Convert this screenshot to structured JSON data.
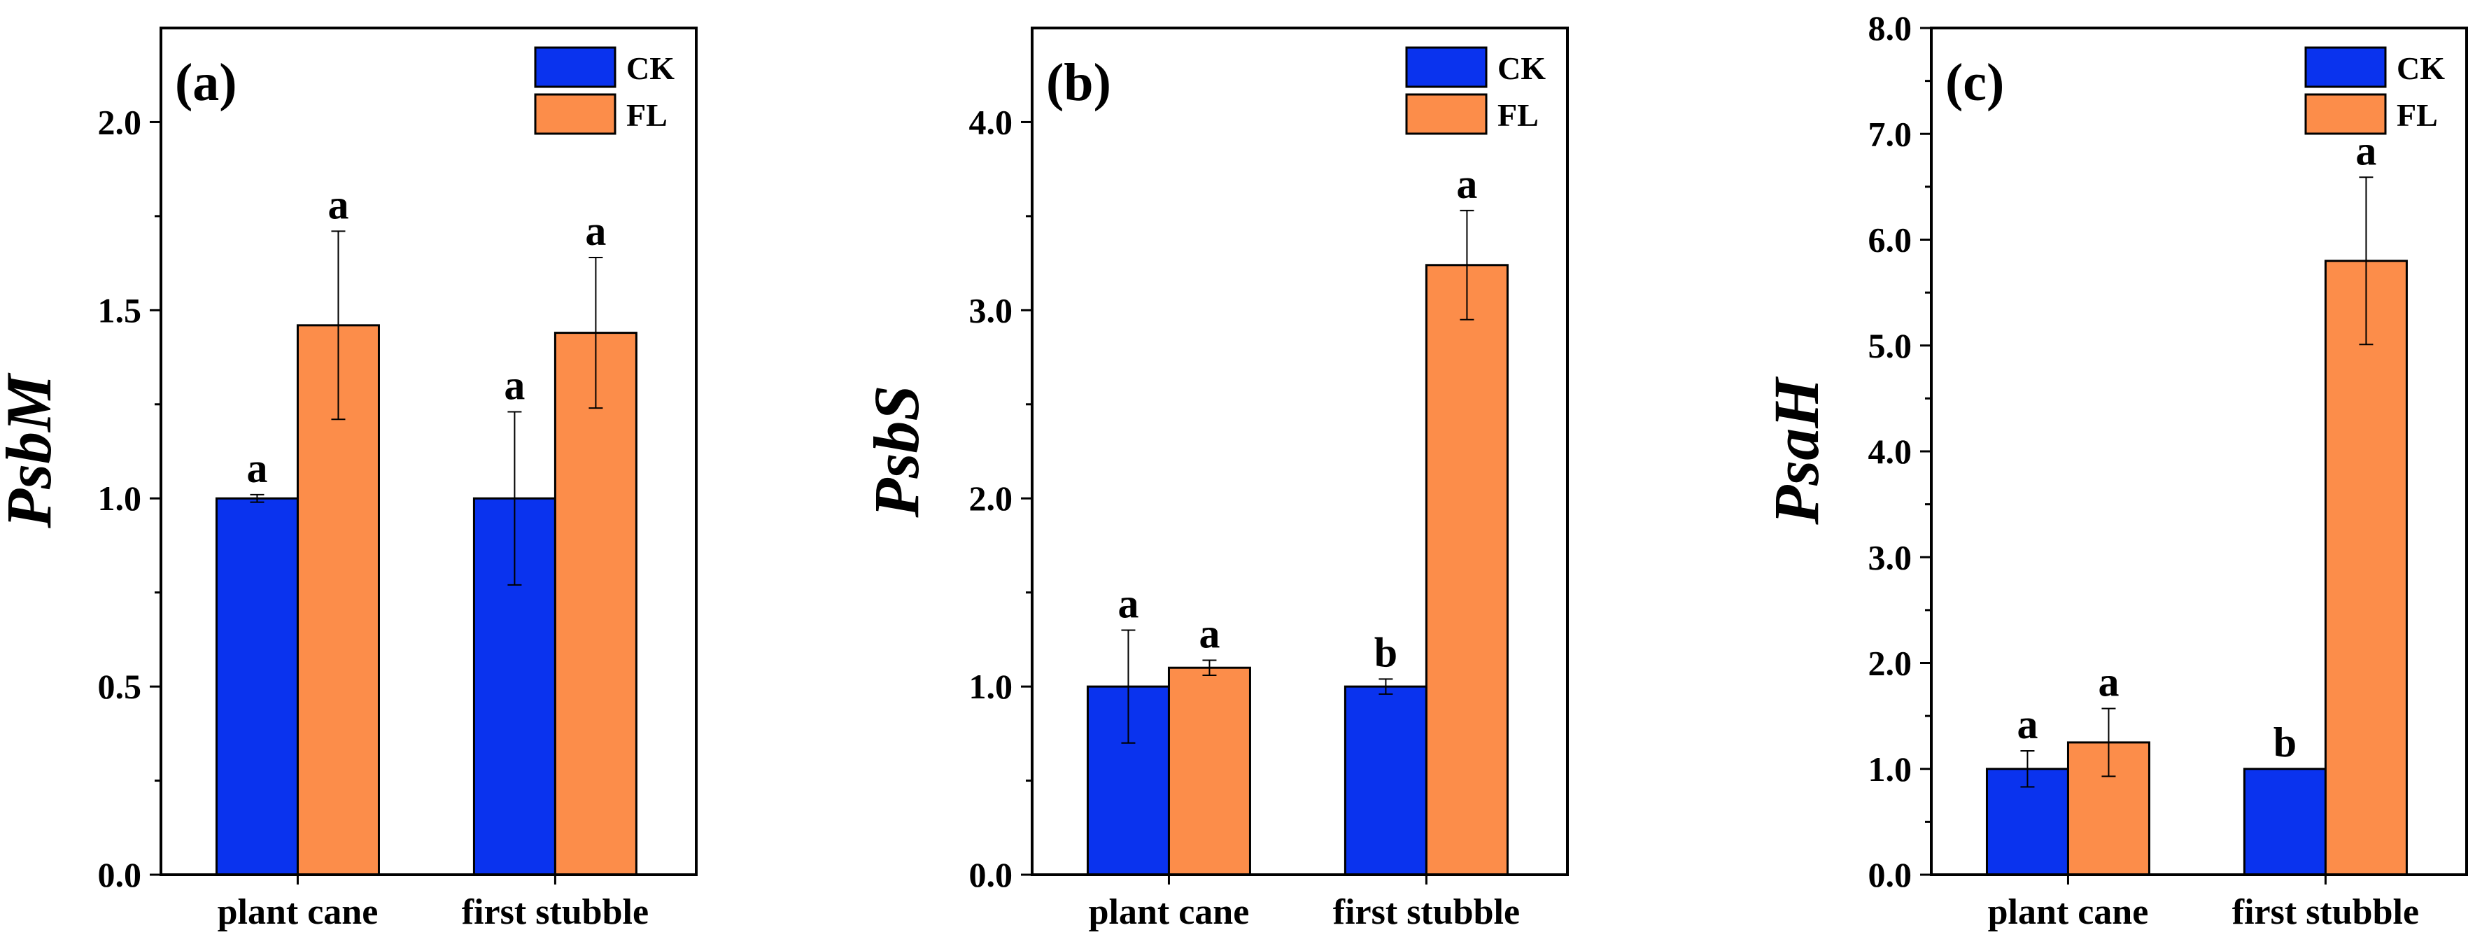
{
  "colors": {
    "CK": "#0a33ee",
    "FL": "#fc8d4a",
    "axis": "#000000"
  },
  "legend_labels": [
    "CK",
    "FL"
  ],
  "chart_data": [
    {
      "type": "bar",
      "panel_label": "(a)",
      "ylabel": "PsbM",
      "ylim": [
        0,
        2.25
      ],
      "yticks": [
        "0.0",
        "0.5",
        "1.0",
        "1.5",
        "2.0"
      ],
      "categories": [
        "plant cane",
        "first stubble"
      ],
      "legend_position": "top-right",
      "series": [
        {
          "name": "CK",
          "values": [
            1.0,
            1.0
          ],
          "errors": [
            0.01,
            0.23
          ],
          "letters": [
            "a",
            "a"
          ]
        },
        {
          "name": "FL",
          "values": [
            1.46,
            1.44
          ],
          "errors": [
            0.25,
            0.2
          ],
          "letters": [
            "a",
            "a"
          ]
        }
      ]
    },
    {
      "type": "bar",
      "panel_label": "(b)",
      "ylabel": "PsbS",
      "ylim": [
        0,
        4.5
      ],
      "yticks": [
        "0.0",
        "1.0",
        "2.0",
        "3.0",
        "4.0"
      ],
      "categories": [
        "plant cane",
        "first stubble"
      ],
      "legend_position": "top-right",
      "series": [
        {
          "name": "CK",
          "values": [
            1.0,
            1.0
          ],
          "errors": [
            0.3,
            0.04
          ],
          "letters": [
            "a",
            "b"
          ]
        },
        {
          "name": "FL",
          "values": [
            1.1,
            3.24
          ],
          "errors": [
            0.04,
            0.29
          ],
          "letters": [
            "a",
            "a"
          ]
        }
      ]
    },
    {
      "type": "bar",
      "panel_label": "(c)",
      "ylabel": "PsaH",
      "ylim": [
        0,
        8.0
      ],
      "yticks": [
        "0.0",
        "1.0",
        "2.0",
        "3.0",
        "4.0",
        "5.0",
        "6.0",
        "7.0",
        "8.0"
      ],
      "categories": [
        "plant cane",
        "first stubble"
      ],
      "legend_position": "top-right",
      "series": [
        {
          "name": "CK",
          "values": [
            1.0,
            1.0
          ],
          "errors": [
            0.17,
            0.0
          ],
          "letters": [
            "a",
            "b"
          ]
        },
        {
          "name": "FL",
          "values": [
            1.25,
            5.8
          ],
          "errors": [
            0.32,
            0.79
          ],
          "letters": [
            "a",
            "a"
          ]
        }
      ]
    }
  ]
}
